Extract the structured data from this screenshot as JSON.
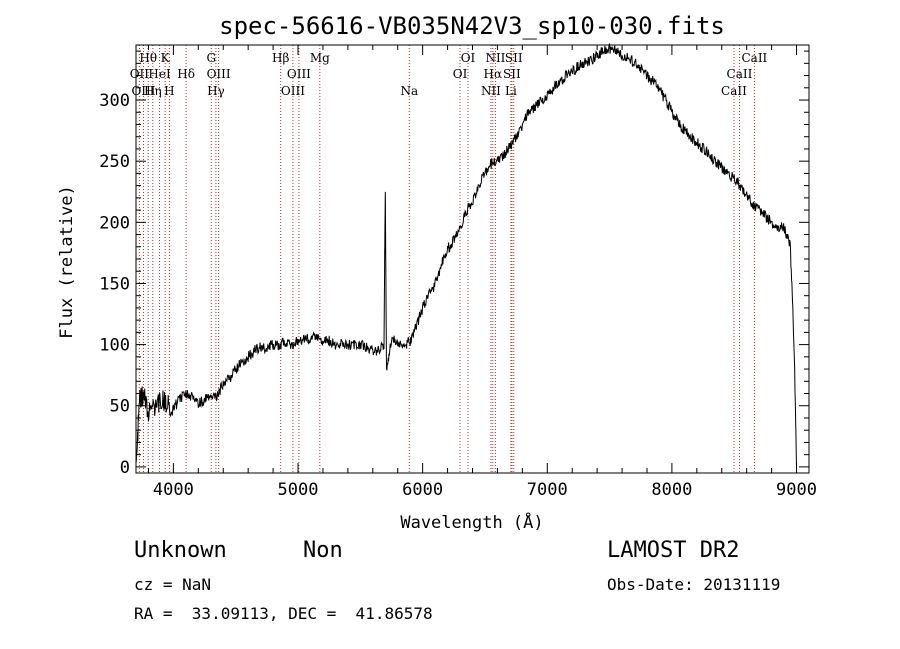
{
  "chart_data": {
    "type": "line",
    "title": "spec-56616-VB035N42V3_sp10-030.fits",
    "xlabel": "Wavelength (Å)",
    "ylabel": "Flux (relative)",
    "xlim": [
      3700,
      9100
    ],
    "ylim": [
      -5,
      345
    ],
    "xticks": [
      4000,
      5000,
      6000,
      7000,
      8000,
      9000
    ],
    "yticks": [
      0,
      50,
      100,
      150,
      200,
      250,
      300
    ],
    "grid": false,
    "legend": "none",
    "series": [
      {
        "x": [
          3700,
          3730,
          3760,
          3800,
          3850,
          3900,
          3950,
          4000,
          4050,
          4100,
          4150,
          4200,
          4250,
          4300,
          4350,
          4400,
          4450,
          4500,
          4550,
          4600,
          4650,
          4700,
          4750,
          4800,
          4850,
          4900,
          4950,
          5000,
          5050,
          5100,
          5150,
          5200,
          5250,
          5300,
          5350,
          5400,
          5450,
          5500,
          5550,
          5600,
          5650,
          5690,
          5700,
          5710,
          5750,
          5800,
          5850,
          5900,
          5950,
          6000,
          6050,
          6100,
          6150,
          6200,
          6250,
          6300,
          6350,
          6400,
          6450,
          6500,
          6550,
          6600,
          6650,
          6700,
          6750,
          6800,
          6850,
          6900,
          6950,
          7000,
          7050,
          7100,
          7150,
          7200,
          7250,
          7300,
          7350,
          7400,
          7450,
          7500,
          7550,
          7600,
          7650,
          7700,
          7750,
          7800,
          7850,
          7900,
          7950,
          8000,
          8050,
          8100,
          8150,
          8200,
          8250,
          8300,
          8350,
          8400,
          8450,
          8500,
          8550,
          8600,
          8650,
          8700,
          8750,
          8800,
          8850,
          8900,
          8950,
          8980,
          9000
        ],
        "y": [
          5,
          55,
          60,
          45,
          50,
          55,
          52,
          48,
          55,
          60,
          58,
          52,
          55,
          60,
          58,
          68,
          72,
          80,
          85,
          90,
          95,
          98,
          97,
          100,
          100,
          102,
          100,
          103,
          104,
          106,
          105,
          103,
          104,
          100,
          102,
          100,
          99,
          100,
          97,
          96,
          95,
          100,
          225,
          80,
          105,
          100,
          100,
          102,
          115,
          130,
          140,
          150,
          165,
          178,
          185,
          195,
          208,
          218,
          230,
          240,
          248,
          252,
          255,
          262,
          270,
          280,
          290,
          295,
          300,
          303,
          310,
          315,
          320,
          323,
          328,
          330,
          333,
          336,
          340,
          342,
          340,
          337,
          335,
          330,
          325,
          320,
          315,
          308,
          300,
          290,
          283,
          275,
          270,
          265,
          260,
          255,
          250,
          245,
          240,
          235,
          230,
          222,
          215,
          210,
          205,
          200,
          197,
          195,
          180,
          100,
          0
        ]
      }
    ],
    "emission_lines": [
      {
        "label": "Hθ",
        "wavelength": 3798,
        "row": 1
      },
      {
        "label": "OII",
        "wavelength": 3727,
        "row": 2
      },
      {
        "label": "OIII",
        "wavelength": 3760,
        "row": 3
      },
      {
        "label": "K",
        "wavelength": 3934,
        "row": 1
      },
      {
        "label": "H",
        "wavelength": 3968,
        "row": 3
      },
      {
        "label": "Hη",
        "wavelength": 3835,
        "row": 3
      },
      {
        "label": "HeI",
        "wavelength": 3889,
        "row": 2
      },
      {
        "label": "Hδ",
        "wavelength": 4102,
        "row": 2
      },
      {
        "label": "G",
        "wavelength": 4304,
        "row": 1
      },
      {
        "label": "OIII",
        "wavelength": 4363,
        "row": 2
      },
      {
        "label": "Hγ",
        "wavelength": 4341,
        "row": 3
      },
      {
        "label": "Hβ",
        "wavelength": 4861,
        "row": 1
      },
      {
        "label": "OIII",
        "wavelength": 5007,
        "row": 2
      },
      {
        "label": "OIII",
        "wavelength": 4959,
        "row": 3
      },
      {
        "label": "Mg",
        "wavelength": 5175,
        "row": 1
      },
      {
        "label": "Na",
        "wavelength": 5893,
        "row": 3
      },
      {
        "label": "OI",
        "wavelength": 6364,
        "row": 1
      },
      {
        "label": "OI",
        "wavelength": 6300,
        "row": 2
      },
      {
        "label": "NII",
        "wavelength": 6584,
        "row": 1
      },
      {
        "label": "Hα",
        "wavelength": 6563,
        "row": 2
      },
      {
        "label": "NII",
        "wavelength": 6548,
        "row": 3
      },
      {
        "label": "SII",
        "wavelength": 6731,
        "row": 1
      },
      {
        "label": "SII",
        "wavelength": 6716,
        "row": 2
      },
      {
        "label": "Li",
        "wavelength": 6708,
        "row": 3
      },
      {
        "label": "CaII",
        "wavelength": 8662,
        "row": 1
      },
      {
        "label": "CaII",
        "wavelength": 8542,
        "row": 2
      },
      {
        "label": "CaII",
        "wavelength": 8498,
        "row": 3
      }
    ]
  },
  "info": {
    "class": "Unknown",
    "subclass": "Non",
    "cz": "cz = NaN",
    "coords": "RA =  33.09113, DEC =  41.86578",
    "survey": "LAMOST DR2",
    "obs_date": "Obs-Date: 20131119"
  }
}
